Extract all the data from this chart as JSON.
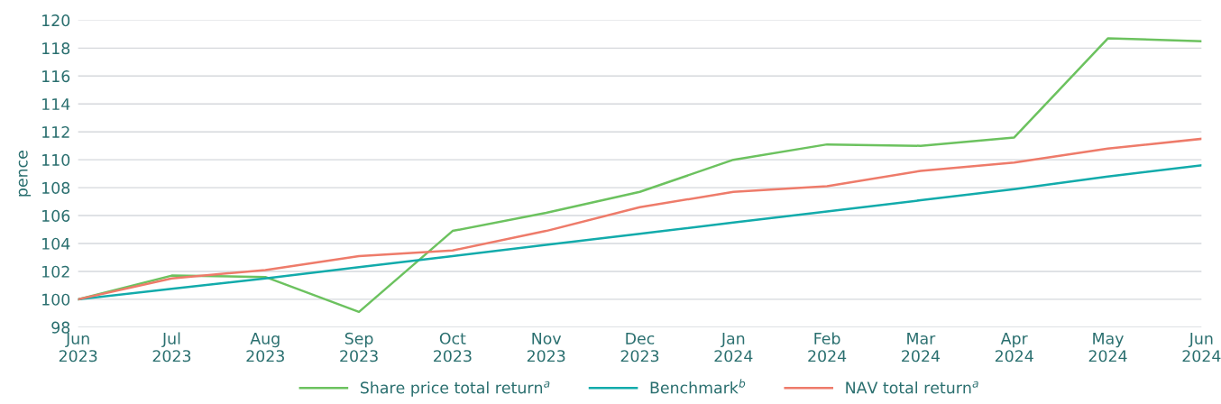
{
  "chart_data": {
    "type": "line",
    "ylabel": "pence",
    "categories": [
      "Jun\n2023",
      "Jul\n2023",
      "Aug\n2023",
      "Sep\n2023",
      "Oct\n2023",
      "Nov\n2023",
      "Dec\n2023",
      "Jan\n2024",
      "Feb\n2024",
      "Mar\n2024",
      "Apr\n2024",
      "May\n2024",
      "Jun\n2024"
    ],
    "series": [
      {
        "name": "Share price total return$^{a}$",
        "color": "#6cc25f",
        "values": [
          100,
          101.7,
          101.6,
          99.1,
          104.9,
          106.2,
          107.7,
          110.0,
          111.1,
          111.0,
          111.6,
          118.7,
          118.5
        ]
      },
      {
        "name": "Benchmark$^{b}$",
        "color": "#12abab",
        "values": [
          100,
          100.75,
          101.5,
          102.3,
          103.1,
          103.9,
          104.7,
          105.5,
          106.3,
          107.1,
          107.9,
          108.8,
          109.6
        ]
      },
      {
        "name": "NAV total return$^{a}$",
        "color": "#ee7b6a",
        "values": [
          100,
          101.5,
          102.1,
          103.1,
          103.5,
          104.9,
          106.6,
          107.7,
          108.1,
          109.2,
          109.8,
          110.8,
          111.5
        ]
      }
    ],
    "ylim": [
      98,
      120
    ],
    "yticks": [
      98,
      100,
      102,
      104,
      106,
      108,
      110,
      112,
      114,
      116,
      118,
      120
    ],
    "grid": "y",
    "legend": "bottom",
    "marker": "none",
    "line_style": "solid"
  }
}
